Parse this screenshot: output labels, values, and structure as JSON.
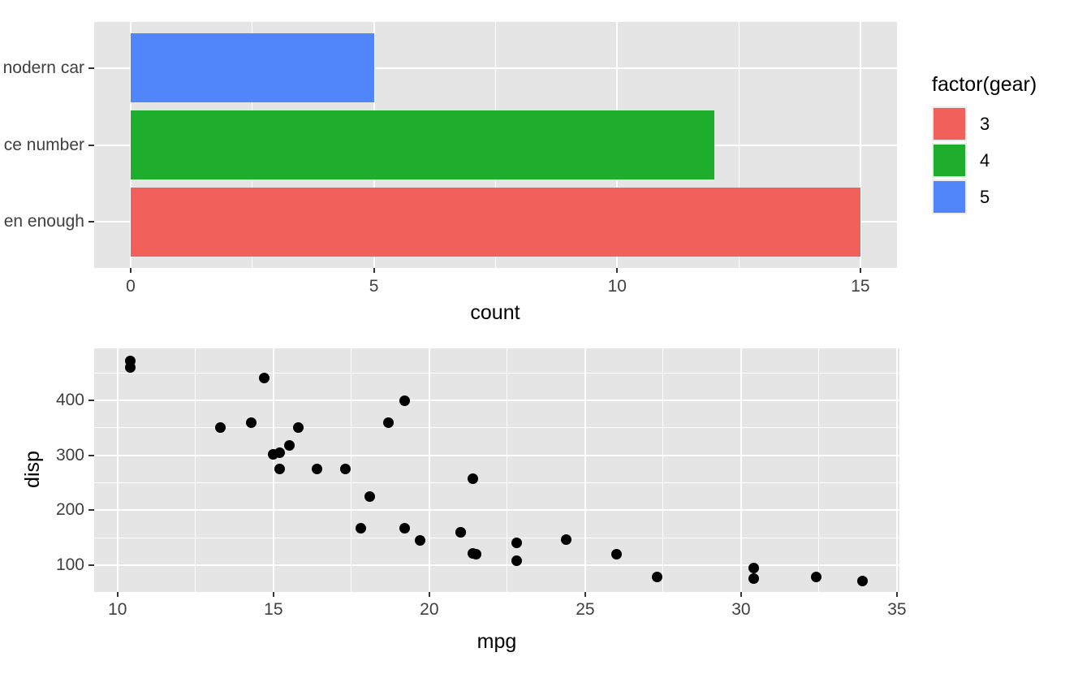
{
  "figure": {
    "background": "#FFFFFF",
    "panel_background": "#E5E5E5",
    "gridline_color": "#FFFFFF",
    "tick_mark_color": "#333333",
    "tick_label_color": "#404040",
    "axis_title_color": "#000000"
  },
  "chart_data": [
    {
      "type": "bar",
      "orientation": "horizontal",
      "xlabel": "count",
      "categories": [
        "nodern car",
        "ce number",
        "en enough"
      ],
      "values": [
        5,
        12,
        15
      ],
      "bar_colors": [
        "#5086F9",
        "#1FAD2D",
        "#F2605C"
      ],
      "x_ticks": [
        0,
        5,
        10,
        15
      ],
      "x_minor_ticks": [
        2.5,
        7.5,
        12.5
      ],
      "xlim": [
        -0.75,
        15.75
      ],
      "grid": true,
      "legend": {
        "title": "factor(gear)",
        "position": "right",
        "items": [
          {
            "label": "3",
            "color": "#F2605C"
          },
          {
            "label": "4",
            "color": "#1FAD2D"
          },
          {
            "label": "5",
            "color": "#5086F9"
          }
        ]
      }
    },
    {
      "type": "scatter",
      "xlabel": "mpg",
      "ylabel": "disp",
      "x_ticks": [
        10,
        15,
        20,
        25,
        30,
        35
      ],
      "x_minor_ticks": [
        12.5,
        17.5,
        22.5,
        27.5,
        32.5
      ],
      "y_ticks": [
        100,
        200,
        300,
        400
      ],
      "y_minor_ticks": [
        150,
        250,
        350,
        450
      ],
      "xlim": [
        9.25,
        35.08
      ],
      "ylim": [
        51.2,
        494.6
      ],
      "point_color": "#000000",
      "grid": true,
      "points": [
        [
          21.0,
          160.0
        ],
        [
          21.0,
          160.0
        ],
        [
          22.8,
          108.0
        ],
        [
          21.4,
          258.0
        ],
        [
          18.7,
          360.0
        ],
        [
          18.1,
          225.0
        ],
        [
          14.3,
          360.0
        ],
        [
          24.4,
          146.7
        ],
        [
          22.8,
          140.8
        ],
        [
          19.2,
          167.6
        ],
        [
          17.8,
          167.6
        ],
        [
          16.4,
          275.8
        ],
        [
          17.3,
          275.8
        ],
        [
          15.2,
          275.8
        ],
        [
          10.4,
          472.0
        ],
        [
          10.4,
          460.0
        ],
        [
          14.7,
          440.0
        ],
        [
          32.4,
          78.7
        ],
        [
          30.4,
          75.7
        ],
        [
          33.9,
          71.1
        ],
        [
          21.5,
          120.1
        ],
        [
          15.5,
          318.0
        ],
        [
          15.2,
          304.0
        ],
        [
          13.3,
          350.0
        ],
        [
          19.2,
          400.0
        ],
        [
          27.3,
          79.0
        ],
        [
          26.0,
          120.3
        ],
        [
          30.4,
          95.1
        ],
        [
          15.8,
          351.0
        ],
        [
          19.7,
          145.0
        ],
        [
          15.0,
          301.0
        ],
        [
          21.4,
          121.0
        ]
      ]
    }
  ]
}
